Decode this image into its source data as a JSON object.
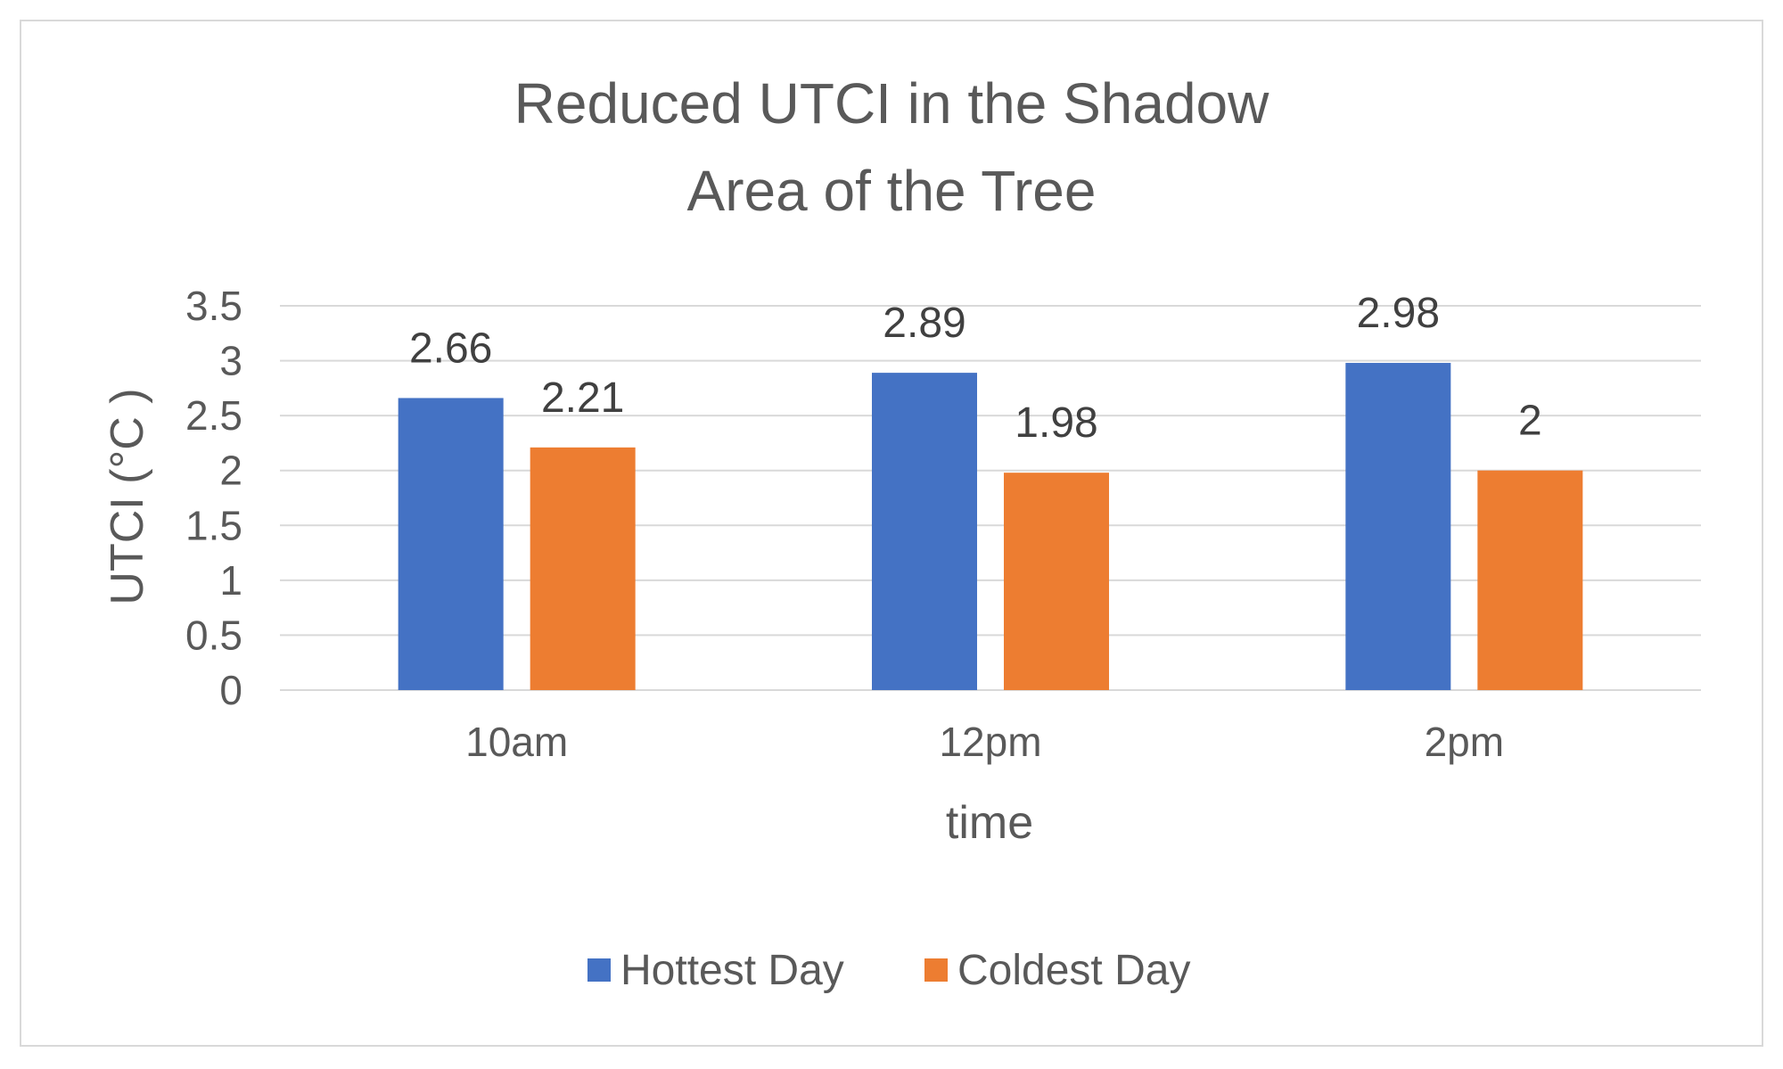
{
  "chart_data": {
    "type": "bar",
    "title": "Reduced UTCI in the Shadow Area of the Tree",
    "title_lines": [
      "Reduced UTCI in the Shadow",
      "Area of the Tree"
    ],
    "xlabel": "time",
    "ylabel": "UTCI (°C )",
    "categories": [
      "10am",
      "12pm",
      "2pm"
    ],
    "series": [
      {
        "name": "Hottest Day",
        "color": "#4472C4",
        "values": [
          2.66,
          2.89,
          2.98
        ],
        "labels": [
          "2.66",
          "2.89",
          "2.98"
        ]
      },
      {
        "name": "Coldest Day",
        "color": "#ED7D31",
        "values": [
          2.21,
          1.98,
          2.0
        ],
        "labels": [
          "2.21",
          "1.98",
          "2"
        ]
      }
    ],
    "ylim": [
      0,
      3.5
    ],
    "yticks": [
      "0",
      "0.5",
      "1",
      "1.5",
      "2",
      "2.5",
      "3",
      "3.5"
    ],
    "grid": true,
    "gridline_color": "#d9d9d9",
    "legend_position": "bottom"
  }
}
